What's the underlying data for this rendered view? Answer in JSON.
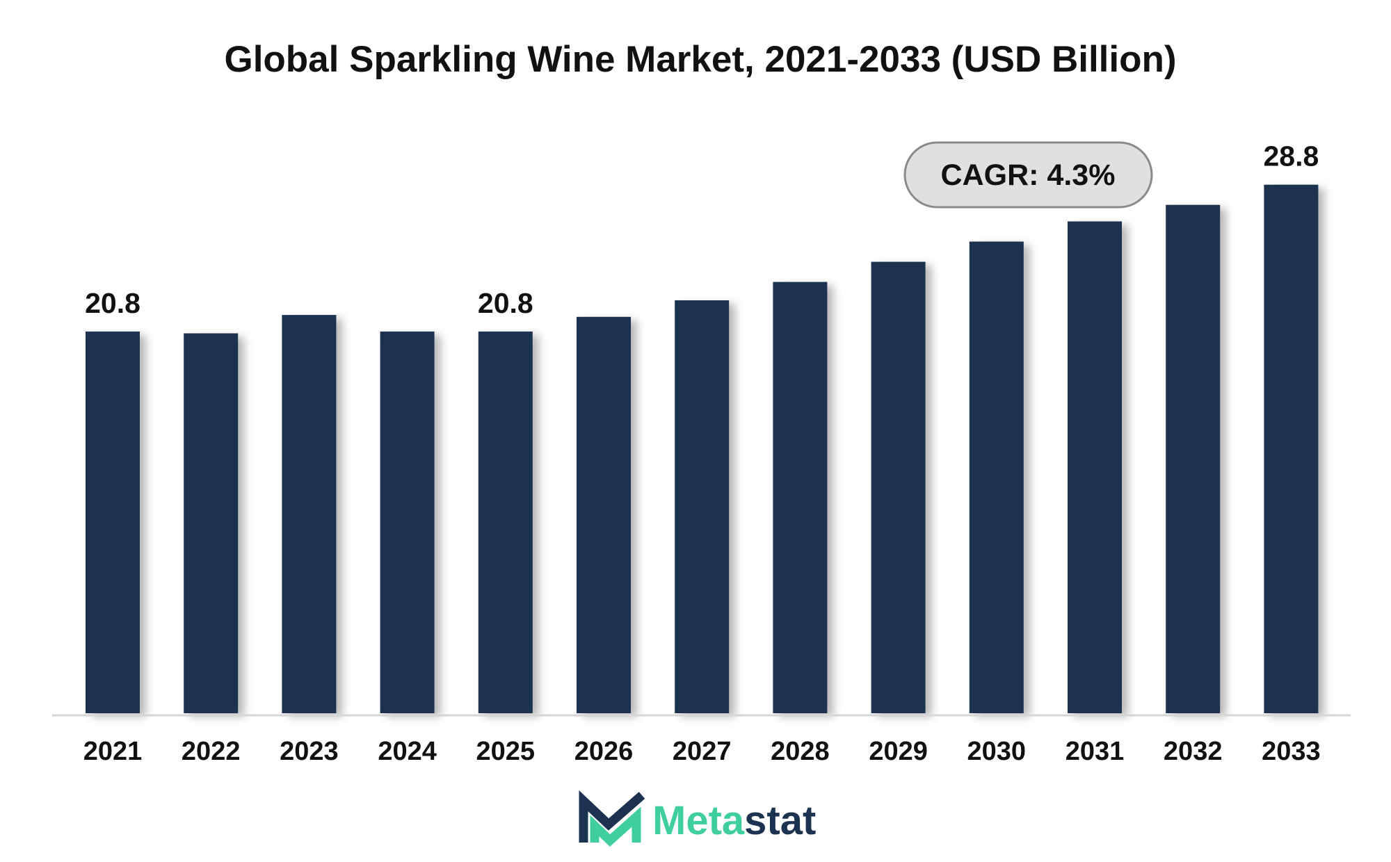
{
  "chart_data": {
    "type": "bar",
    "title": "Global Sparkling Wine Market, 2021-2033 (USD Billion)",
    "xlabel": "",
    "ylabel": "",
    "categories": [
      "2021",
      "2022",
      "2023",
      "2024",
      "2025",
      "2026",
      "2027",
      "2028",
      "2029",
      "2030",
      "2031",
      "2032",
      "2033"
    ],
    "values": [
      20.8,
      20.7,
      21.7,
      20.8,
      20.8,
      21.6,
      22.5,
      23.5,
      24.6,
      25.7,
      26.8,
      27.7,
      28.8
    ],
    "data_labels": [
      {
        "category": "2021",
        "text": "20.8"
      },
      {
        "category": "2025",
        "text": "20.8"
      },
      {
        "category": "2033",
        "text": "28.8"
      }
    ],
    "ylim": [
      0,
      30
    ],
    "grid": false,
    "legend": "none",
    "annotation": "CAGR: 4.3%"
  },
  "brand": {
    "part1": "Meta",
    "part2": "stat"
  },
  "colors": {
    "bar": "#1b3250",
    "brand_teal": "#3fcf9f",
    "brand_navy": "#1b3250",
    "badge_fill": "#e0e0e0",
    "badge_stroke": "#8a8a8a",
    "axis": "#d6d6d6"
  }
}
